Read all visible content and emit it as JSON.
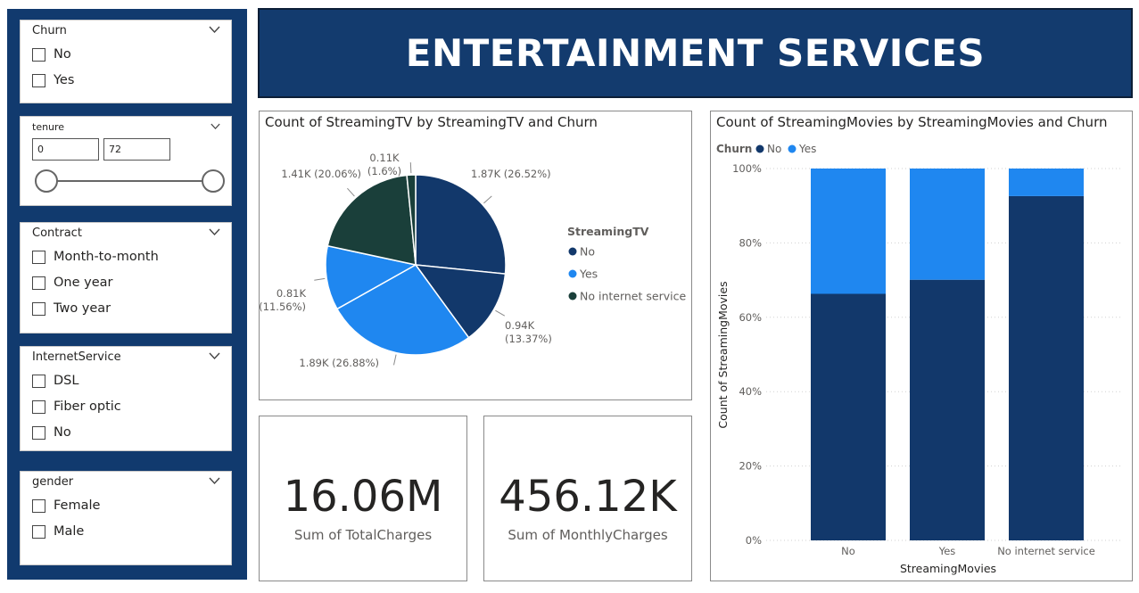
{
  "header": {
    "title": "ENTERTAINMENT SERVICES"
  },
  "slicers": {
    "churn": {
      "title": "Churn",
      "options": [
        "No",
        "Yes"
      ]
    },
    "tenure": {
      "title": "tenure",
      "min": "0",
      "max": "72"
    },
    "contract": {
      "title": "Contract",
      "options": [
        "Month-to-month",
        "One year",
        "Two year"
      ]
    },
    "internet": {
      "title": "InternetService",
      "options": [
        "DSL",
        "Fiber optic",
        "No"
      ]
    },
    "gender": {
      "title": "gender",
      "options": [
        "Female",
        "Male"
      ]
    }
  },
  "kpis": {
    "total": {
      "value": "16.06M",
      "label": "Sum of TotalCharges"
    },
    "monthly": {
      "value": "456.12K",
      "label": "Sum of MonthlyCharges"
    }
  },
  "chart_data": [
    {
      "type": "pie",
      "title": "Count of StreamingTV by StreamingTV and Churn",
      "legend_title": "StreamingTV",
      "legend_placement": "right",
      "legend": [
        {
          "name": "No",
          "color": "#12386b"
        },
        {
          "name": "Yes",
          "color": "#1f87f0"
        },
        {
          "name": "No internet service",
          "color": "#1a3f3a"
        }
      ],
      "slices": [
        {
          "category": "No",
          "churn": "No",
          "value": 1.87,
          "percent": 26.52,
          "label": "1.87K (26.52%)",
          "color": "#12386b"
        },
        {
          "category": "No",
          "churn": "Yes",
          "value": 0.94,
          "percent": 13.37,
          "label": "0.94K (13.37%)",
          "color": "#12386b"
        },
        {
          "category": "Yes",
          "churn": "No",
          "value": 1.89,
          "percent": 26.88,
          "label": "1.89K (26.88%)",
          "color": "#1f87f0"
        },
        {
          "category": "Yes",
          "churn": "Yes",
          "value": 0.81,
          "percent": 11.56,
          "label": "0.81K (11.56%)",
          "color": "#1f87f0"
        },
        {
          "category": "No internet service",
          "churn": "No",
          "value": 1.41,
          "percent": 20.06,
          "label": "1.41K (20.06%)",
          "color": "#1a3f3a"
        },
        {
          "category": "No internet service",
          "churn": "Yes",
          "value": 0.11,
          "percent": 1.6,
          "label": "0.11K (1.6%)",
          "color": "#1a3f3a"
        }
      ]
    },
    {
      "type": "bar",
      "stacked": "100%",
      "title": "Count of StreamingMovies by StreamingMovies and Churn",
      "legend_title": "Churn",
      "legend_placement": "top-left",
      "xlabel": "StreamingMovies",
      "ylabel": "Count of StreamingMovies",
      "categories": [
        "No",
        "Yes",
        "No internet service"
      ],
      "yticks": [
        "0%",
        "20%",
        "40%",
        "60%",
        "80%",
        "100%"
      ],
      "ylim": [
        0,
        100
      ],
      "grid": true,
      "series": [
        {
          "name": "No",
          "color": "#12386b",
          "values": [
            66.3,
            70.1,
            92.6
          ]
        },
        {
          "name": "Yes",
          "color": "#1f87f0",
          "values": [
            33.7,
            29.9,
            7.4
          ]
        }
      ]
    }
  ]
}
